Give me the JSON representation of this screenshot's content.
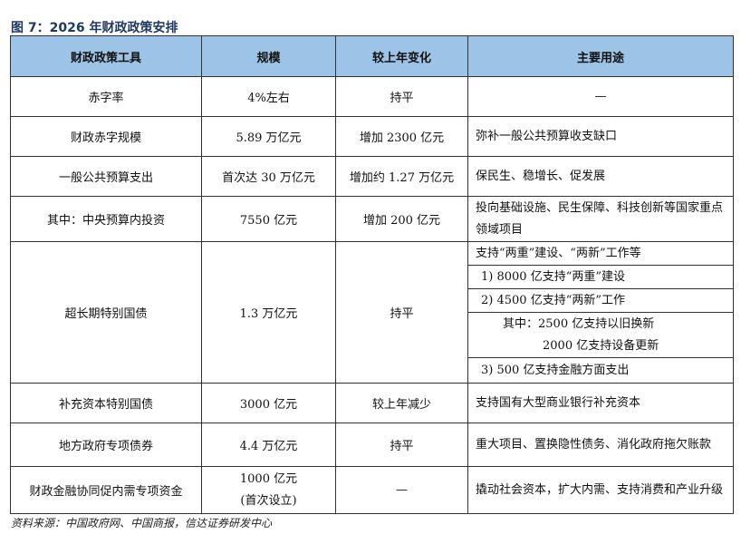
{
  "title": "图 7：2026 年财政政策安排",
  "headers": [
    "财政政策工具",
    "规模",
    "较上年变化",
    "主要用途"
  ],
  "rows": [
    {
      "tool": "赤字率",
      "scale": "4%左右",
      "change": "持平",
      "use": "—"
    },
    {
      "tool": "财政赤字规模",
      "scale": "5.89 万亿元",
      "change": "增加 2300 亿元",
      "use": "弥补一般公共预算收支缺口"
    },
    {
      "tool": "一般公共预算支出",
      "scale": "首次达 30 万亿元",
      "change": "增加约 1.27 万亿元",
      "use": "保民生、稳增长、促发展"
    },
    {
      "tool": "其中：中央预算内投资",
      "scale": "7550 亿元",
      "change": "增加 200 亿元",
      "use": "投向基础设施、民生保障、科技创新等国家重点领域项目"
    },
    {
      "tool": "超长期特别国债",
      "scale": "1.3 万亿元",
      "change": "持平",
      "use_lines": [
        "支持“两重”建设、“两新”工作等",
        "1) 8000 亿支持“两重”建设",
        "2) 4500 亿支持“两新”工作",
        "其中：2500 亿支持以旧换新",
        "2000 亿支持设备更新",
        "3) 500 亿支持金融方面支出"
      ]
    },
    {
      "tool": "补充资本特别国债",
      "scale": "3000 亿元",
      "change": "较上年减少",
      "use": "支持国有大型商业银行补充资本"
    },
    {
      "tool": "地方政府专项债券",
      "scale": "4.4 万亿元",
      "change": "持平",
      "use": "重大项目、置换隐性债务、消化政府拖欠账款"
    },
    {
      "tool": "财政金融协同促内需专项资金",
      "scale": "1000 亿元",
      "scale_note": "(首次设立)",
      "change": "—",
      "use": "撬动社会资本，扩大内需、支持消费和产业升级"
    }
  ],
  "source": "资料来源：中国政府网、中国商报，信达证券研发中心"
}
